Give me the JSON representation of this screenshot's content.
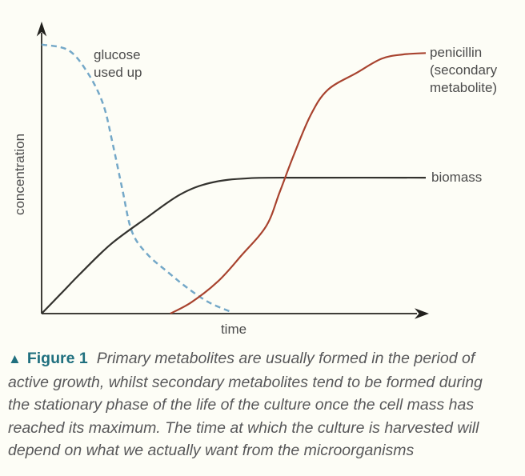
{
  "figure_caption": {
    "marker_icon": "▲",
    "label": "Figure 1",
    "lines": [
      "Primary metabolites are usually formed in the period of",
      "active growth, whilst secondary metabolites tend to be formed during",
      "the stationary phase of the life of the culture once the cell mass has",
      "reached its maximum. The time at which the culture is harvested will",
      "depend on what we actually want from the microorganisms"
    ]
  },
  "chart": {
    "ylabel": "concentration",
    "xlabel": "time",
    "curve_labels": {
      "glucose": "glucose\nused up",
      "penicillin": "penicillin\n(secondary\nmetabolite)",
      "biomass": "biomass"
    }
  },
  "chart_data": {
    "type": "line",
    "title": "",
    "xlabel": "time",
    "ylabel": "concentration",
    "xlim": [
      0,
      10
    ],
    "ylim": [
      0,
      1
    ],
    "grid": false,
    "legend": "inline-labels",
    "series": [
      {
        "id": "glucose",
        "name": "glucose used up",
        "color": "#74a8c8",
        "line_style": "dashed",
        "x": [
          0,
          0.7,
          1.2,
          1.6,
          1.85,
          2.1,
          2.35,
          2.75,
          3.3,
          3.8,
          4.35,
          4.95
        ],
        "y": [
          0.95,
          0.93,
          0.85,
          0.74,
          0.6,
          0.44,
          0.29,
          0.21,
          0.145,
          0.09,
          0.04,
          0.005
        ]
      },
      {
        "id": "biomass",
        "name": "biomass",
        "color": "#33322e",
        "line_style": "solid",
        "x": [
          0,
          0.5,
          1.0,
          1.8,
          2.7,
          3.6,
          4.4,
          5.4,
          7.0,
          10
        ],
        "y": [
          0,
          0.07,
          0.14,
          0.245,
          0.335,
          0.42,
          0.462,
          0.478,
          0.48,
          0.48
        ]
      },
      {
        "id": "penicillin",
        "name": "penicillin (secondary metabolite)",
        "color": "#a8432f",
        "line_style": "solid",
        "x": [
          3.35,
          3.9,
          4.6,
          5.2,
          5.85,
          6.2,
          6.55,
          7.0,
          7.45,
          8.2,
          8.85,
          9.4,
          10
        ],
        "y": [
          0,
          0.04,
          0.115,
          0.205,
          0.31,
          0.43,
          0.555,
          0.7,
          0.79,
          0.85,
          0.9,
          0.915,
          0.92
        ]
      }
    ]
  },
  "colors": {
    "background": "#fdfdf6",
    "teal_accent": "#20707f",
    "axis": "#3f3e39",
    "chart_label_text": "#4c4c4c",
    "caption_text": "#58585a",
    "glucose_line": "#74a8c8",
    "biomass_line": "#33322e",
    "penicillin_line": "#a8432f"
  }
}
